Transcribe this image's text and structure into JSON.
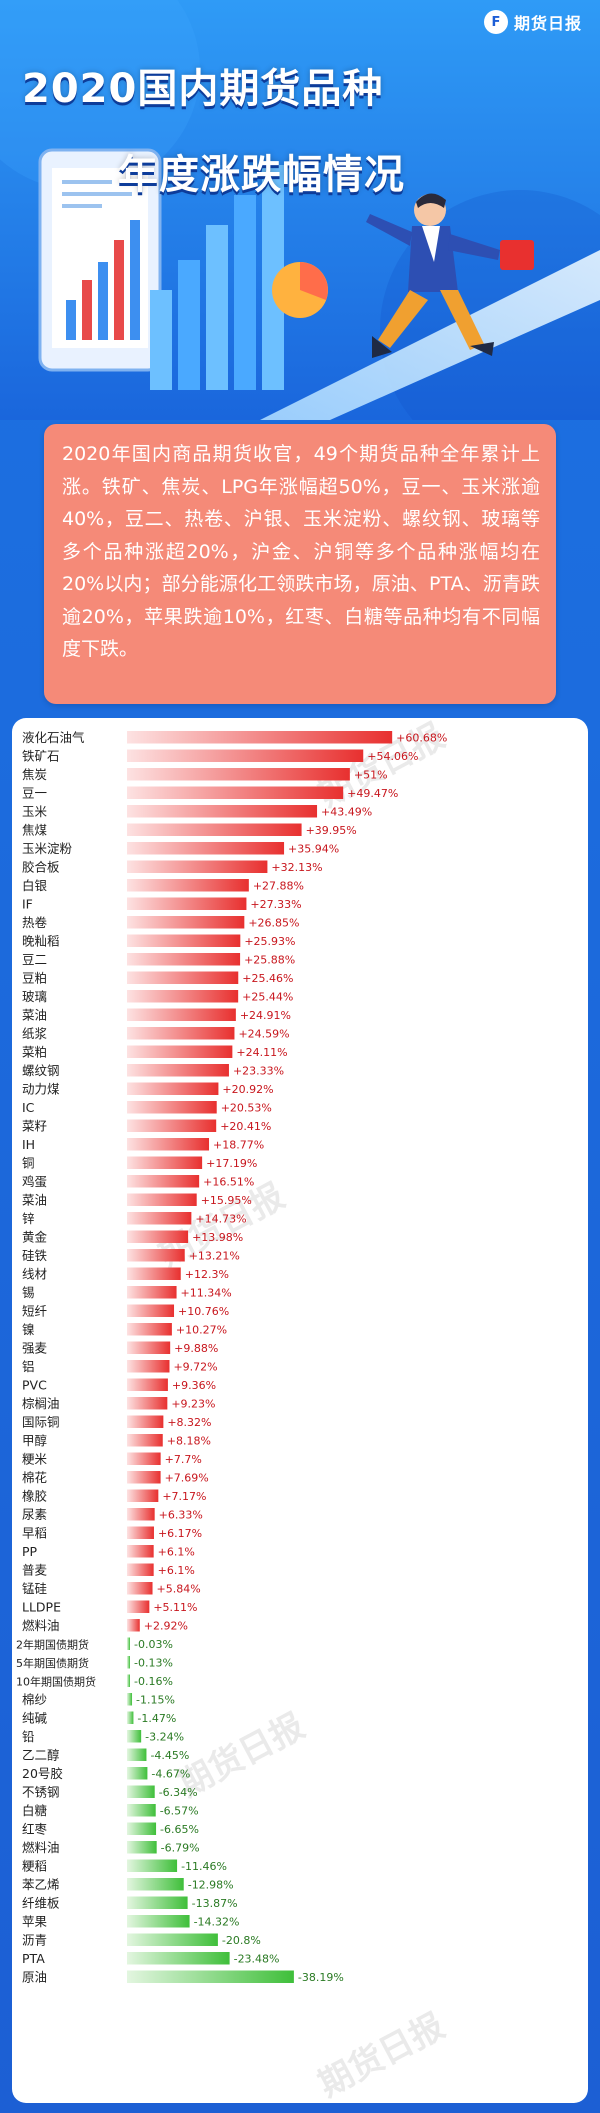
{
  "header": {
    "title_line1": "2020国内期货品种",
    "title_line2": "年度涨跌幅情况",
    "logo_text": "期货日报"
  },
  "summary": {
    "text": "2020年国内商品期货收官，49个期货品种全年累计上涨。铁矿、焦炭、LPG年涨幅超50%，豆一、玉米涨逾40%，豆二、热卷、沪银、玉米淀粉、螺纹钢、玻璃等多个品种涨超20%，沪金、沪铜等多个品种涨幅均在20%以内；部分能源化工领跌市场，原油、PTA、沥青跌逾20%，苹果跌逾10%，红枣、白糖等品种均有不同幅度下跌。"
  },
  "colors": {
    "positive_bar": "#e8302f",
    "negative_bar": "#3fbf3a",
    "positive_label": "#c8161d",
    "negative_label": "#2a7a23",
    "summary_bg": "#f58a78"
  },
  "chart_data": {
    "type": "bar",
    "orientation": "horizontal",
    "categories": [
      "液化石油气",
      "铁矿石",
      "焦炭",
      "豆一",
      "玉米",
      "焦煤",
      "玉米淀粉",
      "胶合板",
      "白银",
      "IF",
      "热卷",
      "晚籼稻",
      "豆二",
      "豆粕",
      "玻璃",
      "菜油",
      "纸浆",
      "菜粕",
      "螺纹钢",
      "动力煤",
      "IC",
      "菜籽",
      "IH",
      "铜",
      "鸡蛋",
      "菜油",
      "锌",
      "黄金",
      "硅铁",
      "线材",
      "锡",
      "短纤",
      "镍",
      "强麦",
      "铝",
      "PVC",
      "棕榈油",
      "国际铜",
      "甲醇",
      "粳米",
      "棉花",
      "橡胶",
      "尿素",
      "早稻",
      "PP",
      "普麦",
      "锰硅",
      "LLDPE",
      "燃料油",
      "2年期国债期货",
      "5年期国债期货",
      "10年期国债期货",
      "棉纱",
      "纯碱",
      "铅",
      "乙二醇",
      "20号胶",
      "不锈钢",
      "白糖",
      "红枣",
      "燃料油",
      "粳稻",
      "苯乙烯",
      "纤维板",
      "苹果",
      "沥青",
      "PTA",
      "原油"
    ],
    "values": [
      60.68,
      54.06,
      51,
      49.47,
      43.49,
      39.95,
      35.94,
      32.13,
      27.88,
      27.33,
      26.85,
      25.93,
      25.88,
      25.46,
      25.44,
      24.91,
      24.59,
      24.11,
      23.33,
      20.92,
      20.53,
      20.41,
      18.77,
      17.19,
      16.51,
      15.95,
      14.73,
      13.98,
      13.21,
      12.3,
      11.34,
      10.76,
      10.27,
      9.88,
      9.72,
      9.36,
      9.23,
      8.32,
      8.18,
      7.7,
      7.69,
      7.17,
      6.33,
      6.17,
      6.1,
      6.1,
      5.84,
      5.11,
      2.92,
      -0.03,
      -0.13,
      -0.16,
      -1.15,
      -1.47,
      -3.24,
      -4.45,
      -4.67,
      -6.34,
      -6.57,
      -6.65,
      -6.79,
      -11.46,
      -12.98,
      -13.87,
      -14.32,
      -20.8,
      -23.48,
      -38.19
    ],
    "value_labels": [
      "+60.68%",
      "+54.06%",
      "+51%",
      "+49.47%",
      "+43.49%",
      "+39.95%",
      "+35.94%",
      "+32.13%",
      "+27.88%",
      "+27.33%",
      "+26.85%",
      "+25.93%",
      "+25.88%",
      "+25.46%",
      "+25.44%",
      "+24.91%",
      "+24.59%",
      "+24.11%",
      "+23.33%",
      "+20.92%",
      "+20.53%",
      "+20.41%",
      "+18.77%",
      "+17.19%",
      "+16.51%",
      "+15.95%",
      "+14.73%",
      "+13.98%",
      "+13.21%",
      "+12.3%",
      "+11.34%",
      "+10.76%",
      "+10.27%",
      "+9.88%",
      "+9.72%",
      "+9.36%",
      "+9.23%",
      "+8.32%",
      "+8.18%",
      "+7.7%",
      "+7.69%",
      "+7.17%",
      "+6.33%",
      "+6.17%",
      "+6.1%",
      "+6.1%",
      "+5.84%",
      "+5.11%",
      "+2.92%",
      "-0.03%",
      "-0.13%",
      "-0.16%",
      "-1.15%",
      "-1.47%",
      "-3.24%",
      "-4.45%",
      "-4.67%",
      "-6.34%",
      "-6.57%",
      "-6.65%",
      "-6.79%",
      "-11.46%",
      "-12.98%",
      "-13.87%",
      "-14.32%",
      "-20.8%",
      "-23.48%",
      "-38.19%"
    ]
  }
}
